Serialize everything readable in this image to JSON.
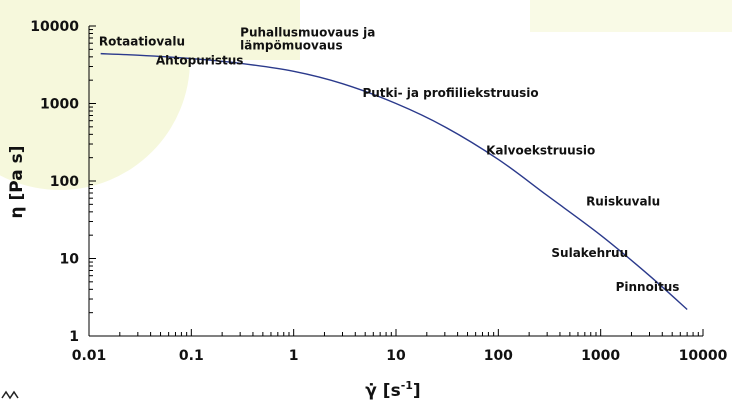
{
  "chart_data": {
    "type": "line",
    "xscale": "log",
    "yscale": "log",
    "xlim": [
      0.01,
      10000
    ],
    "ylim": [
      1,
      10000
    ],
    "x_ticks": [
      "0.01",
      "0.1",
      "1",
      "10",
      "100",
      "1000",
      "10000"
    ],
    "y_ticks": [
      "1",
      "10",
      "100",
      "1000",
      "10000"
    ],
    "xlabel": "γ̇ [s-1]",
    "ylabel": "η [Pa s]",
    "grid": false,
    "series": [
      {
        "color": "#2b3a8c",
        "x": [
          0.013,
          0.03,
          0.1,
          0.3,
          1,
          3,
          10,
          30,
          100,
          300,
          1000,
          3000,
          7000
        ],
        "y": [
          4400,
          4200,
          3800,
          3300,
          2600,
          1800,
          1000,
          500,
          190,
          65,
          20,
          6,
          2.2
        ]
      }
    ],
    "annotations": [
      {
        "text": "Rotaatiovalu",
        "x": 0.0125,
        "y": 5600
      },
      {
        "text": "Ahtopuristus",
        "x": 0.045,
        "y": 3200
      },
      {
        "text": "Puhallusmuovaus ja",
        "x": 0.3,
        "y": 7300
      },
      {
        "text": "lämpömuovaus",
        "x": 0.3,
        "y": 5000
      },
      {
        "text": "Putki- ja profiiliekstruusio",
        "x": 4.7,
        "y": 1220
      },
      {
        "text": "Kalvoekstruusio",
        "x": 76,
        "y": 220
      },
      {
        "text": "Ruiskuvalu",
        "x": 720,
        "y": 48
      },
      {
        "text": "Sulakehruu",
        "x": 330,
        "y": 10.5
      },
      {
        "text": "Pinnoitus",
        "x": 1400,
        "y": 3.8
      }
    ],
    "colors": {
      "background_shape": "#f5f7d6",
      "line": "#2b3a8c"
    }
  }
}
